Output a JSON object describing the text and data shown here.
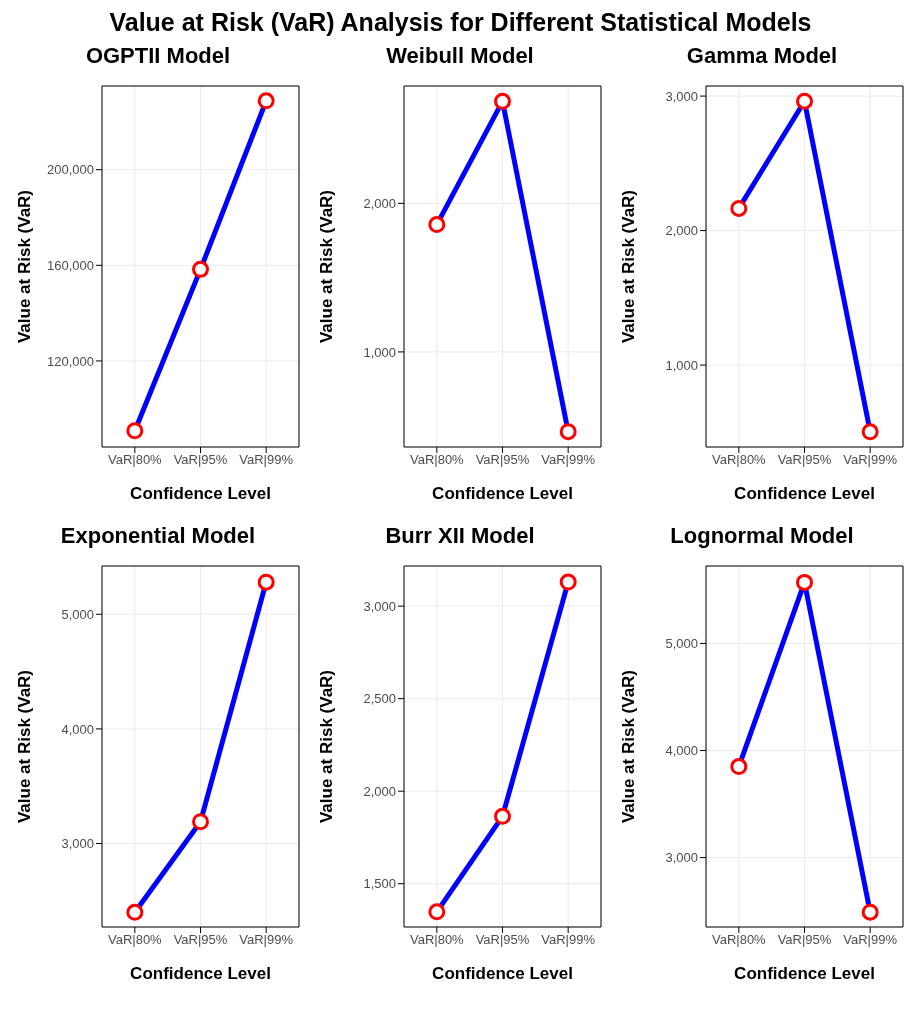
{
  "chart_data": [
    {
      "type": "line",
      "title": "OGPTII Model",
      "xlabel": "Confidence Level",
      "ylabel": "Value at Risk (VaR)",
      "annotations": [
        "Value at Risk (VaR) Analysis for Different Statistical Models"
      ],
      "categories": [
        "VaR|80%",
        "VaR|95%",
        "VaR|99%"
      ],
      "values": [
        90800,
        158300,
        228800
      ],
      "color": "#0000ff",
      "marker": "circle",
      "grid": true,
      "ylim": [
        84000,
        235000
      ],
      "yticks": [
        {
          "value": 120000,
          "label": "120,000"
        },
        {
          "value": 160000,
          "label": "160,000"
        },
        {
          "value": 200000,
          "label": "200,000"
        }
      ]
    },
    {
      "type": "line",
      "title": "Weibull Model",
      "xlabel": "Confidence Level",
      "ylabel": "Value at Risk (VaR)",
      "categories": [
        "VaR|80%",
        "VaR|95%",
        "VaR|99%"
      ],
      "values": [
        1857,
        2687,
        463
      ],
      "color": "#0000ff",
      "marker": "circle",
      "grid": true,
      "ylim": [
        360,
        2790
      ],
      "yticks": [
        {
          "value": 1000,
          "label": "1,000"
        },
        {
          "value": 2000,
          "label": "2,000"
        }
      ]
    },
    {
      "type": "line",
      "title": "Gamma Model",
      "xlabel": "Confidence Level",
      "ylabel": "Value at Risk (VaR)",
      "categories": [
        "VaR|80%",
        "VaR|95%",
        "VaR|99%"
      ],
      "values": [
        2165,
        2962,
        504
      ],
      "color": "#0000ff",
      "marker": "circle",
      "grid": true,
      "ylim": [
        391,
        3075
      ],
      "yticks": [
        {
          "value": 1000,
          "label": "1,000"
        },
        {
          "value": 2000,
          "label": "2,000"
        },
        {
          "value": 3000,
          "label": "3,000"
        }
      ]
    },
    {
      "type": "line",
      "title": "Exponential Model",
      "xlabel": "Confidence Level",
      "ylabel": "Value at Risk (VaR)",
      "categories": [
        "VaR|80%",
        "VaR|95%",
        "VaR|99%"
      ],
      "values": [
        2400,
        3190,
        5280
      ],
      "color": "#0000ff",
      "marker": "circle",
      "grid": true,
      "ylim": [
        2272,
        5421
      ],
      "yticks": [
        {
          "value": 3000,
          "label": "3,000"
        },
        {
          "value": 4000,
          "label": "4,000"
        },
        {
          "value": 5000,
          "label": "5,000"
        }
      ]
    },
    {
      "type": "line",
      "title": "Burr XII Model",
      "xlabel": "Confidence Level",
      "ylabel": "Value at Risk (VaR)",
      "categories": [
        "VaR|80%",
        "VaR|95%",
        "VaR|99%"
      ],
      "values": [
        1348,
        1864,
        3130
      ],
      "color": "#0000ff",
      "marker": "circle",
      "grid": true,
      "ylim": [
        1266,
        3217
      ],
      "yticks": [
        {
          "value": 1500,
          "label": "1,500"
        },
        {
          "value": 2000,
          "label": "2,000"
        },
        {
          "value": 2500,
          "label": "2,500"
        },
        {
          "value": 3000,
          "label": "3,000"
        }
      ]
    },
    {
      "type": "line",
      "title": "Lognormal Model",
      "xlabel": "Confidence Level",
      "ylabel": "Value at Risk (VaR)",
      "categories": [
        "VaR|80%",
        "VaR|95%",
        "VaR|99%"
      ],
      "values": [
        3850,
        5570,
        2490
      ],
      "color": "#0000ff",
      "marker": "circle",
      "grid": true,
      "ylim": [
        2352,
        5723
      ],
      "yticks": [
        {
          "value": 3000,
          "label": "3,000"
        },
        {
          "value": 4000,
          "label": "4,000"
        },
        {
          "value": 5000,
          "label": "5,000"
        }
      ]
    }
  ]
}
